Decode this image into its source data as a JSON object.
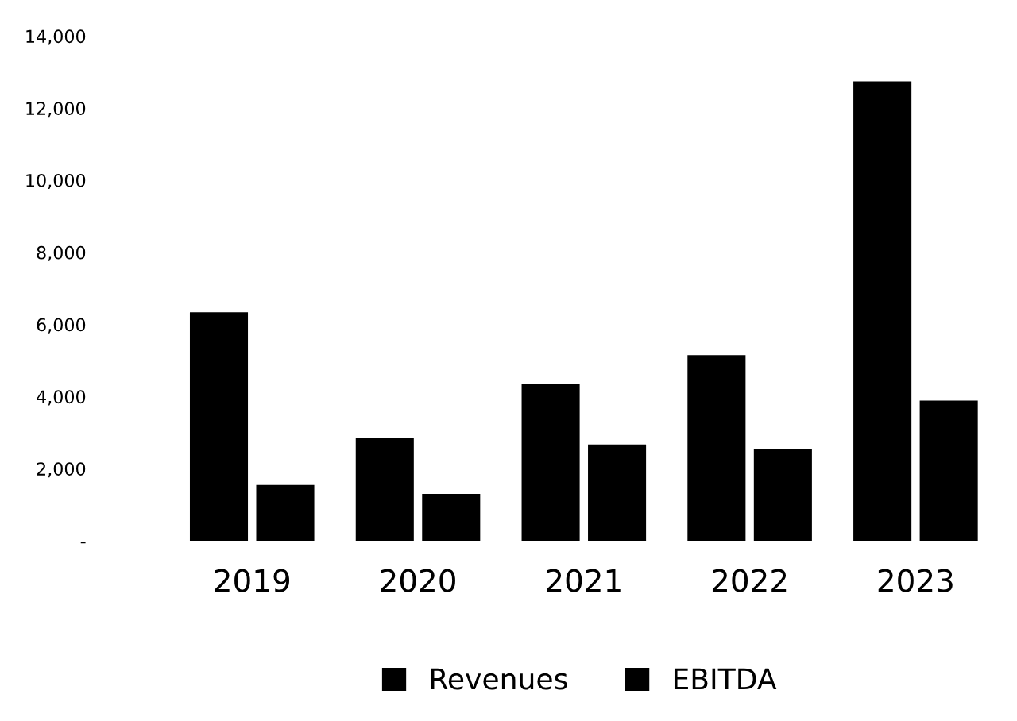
{
  "chart_data": {
    "type": "bar",
    "categories": [
      "2019",
      "2020",
      "2021",
      "2022",
      "2023"
    ],
    "series": [
      {
        "name": "Revenues",
        "color": "#000000",
        "values": [
          6340,
          2850,
          4360,
          5150,
          12740
        ]
      },
      {
        "name": "EBITDA",
        "color": "#000000",
        "values": [
          1550,
          1300,
          2670,
          2540,
          3890
        ]
      }
    ],
    "ylim": [
      0,
      14000
    ],
    "yticks": [
      {
        "value": 0,
        "label": "-"
      },
      {
        "value": 2000,
        "label": "2,000"
      },
      {
        "value": 4000,
        "label": "4,000"
      },
      {
        "value": 6000,
        "label": "6,000"
      },
      {
        "value": 8000,
        "label": "8,000"
      },
      {
        "value": 10000,
        "label": "10,000"
      },
      {
        "value": 12000,
        "label": "12,000"
      },
      {
        "value": 14000,
        "label": "14,000"
      }
    ],
    "grid": false,
    "legend": "bottom"
  }
}
